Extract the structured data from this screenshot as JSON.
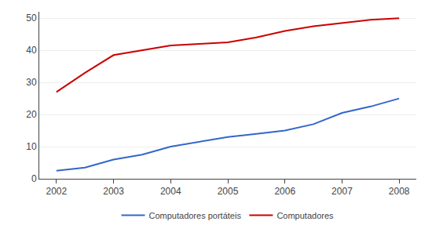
{
  "chart_data": {
    "type": "line",
    "x": [
      2002,
      2002.5,
      2003,
      2003.5,
      2004,
      2004.5,
      2005,
      2005.5,
      2006,
      2006.5,
      2007,
      2007.5,
      2008
    ],
    "series": [
      {
        "name": "Computadores",
        "color": "#cc0000",
        "values": [
          27,
          33,
          38.5,
          40,
          41.5,
          42,
          42.5,
          44,
          46,
          47.5,
          48.5,
          49.5,
          50
        ]
      },
      {
        "name": "Computadores portáteis",
        "color": "#3366cc",
        "values": [
          2.5,
          3.5,
          6,
          7.5,
          10,
          11.5,
          13,
          14,
          15,
          17,
          20.5,
          22.5,
          25
        ]
      }
    ],
    "xlim": [
      2001.7,
      2008.3
    ],
    "xticks": [
      2002,
      2003,
      2004,
      2005,
      2006,
      2007,
      2008
    ],
    "ylim": [
      0,
      52
    ],
    "yticks": [
      0,
      10,
      20,
      30,
      40,
      50
    ],
    "grid": "y",
    "legend": "bottom"
  }
}
